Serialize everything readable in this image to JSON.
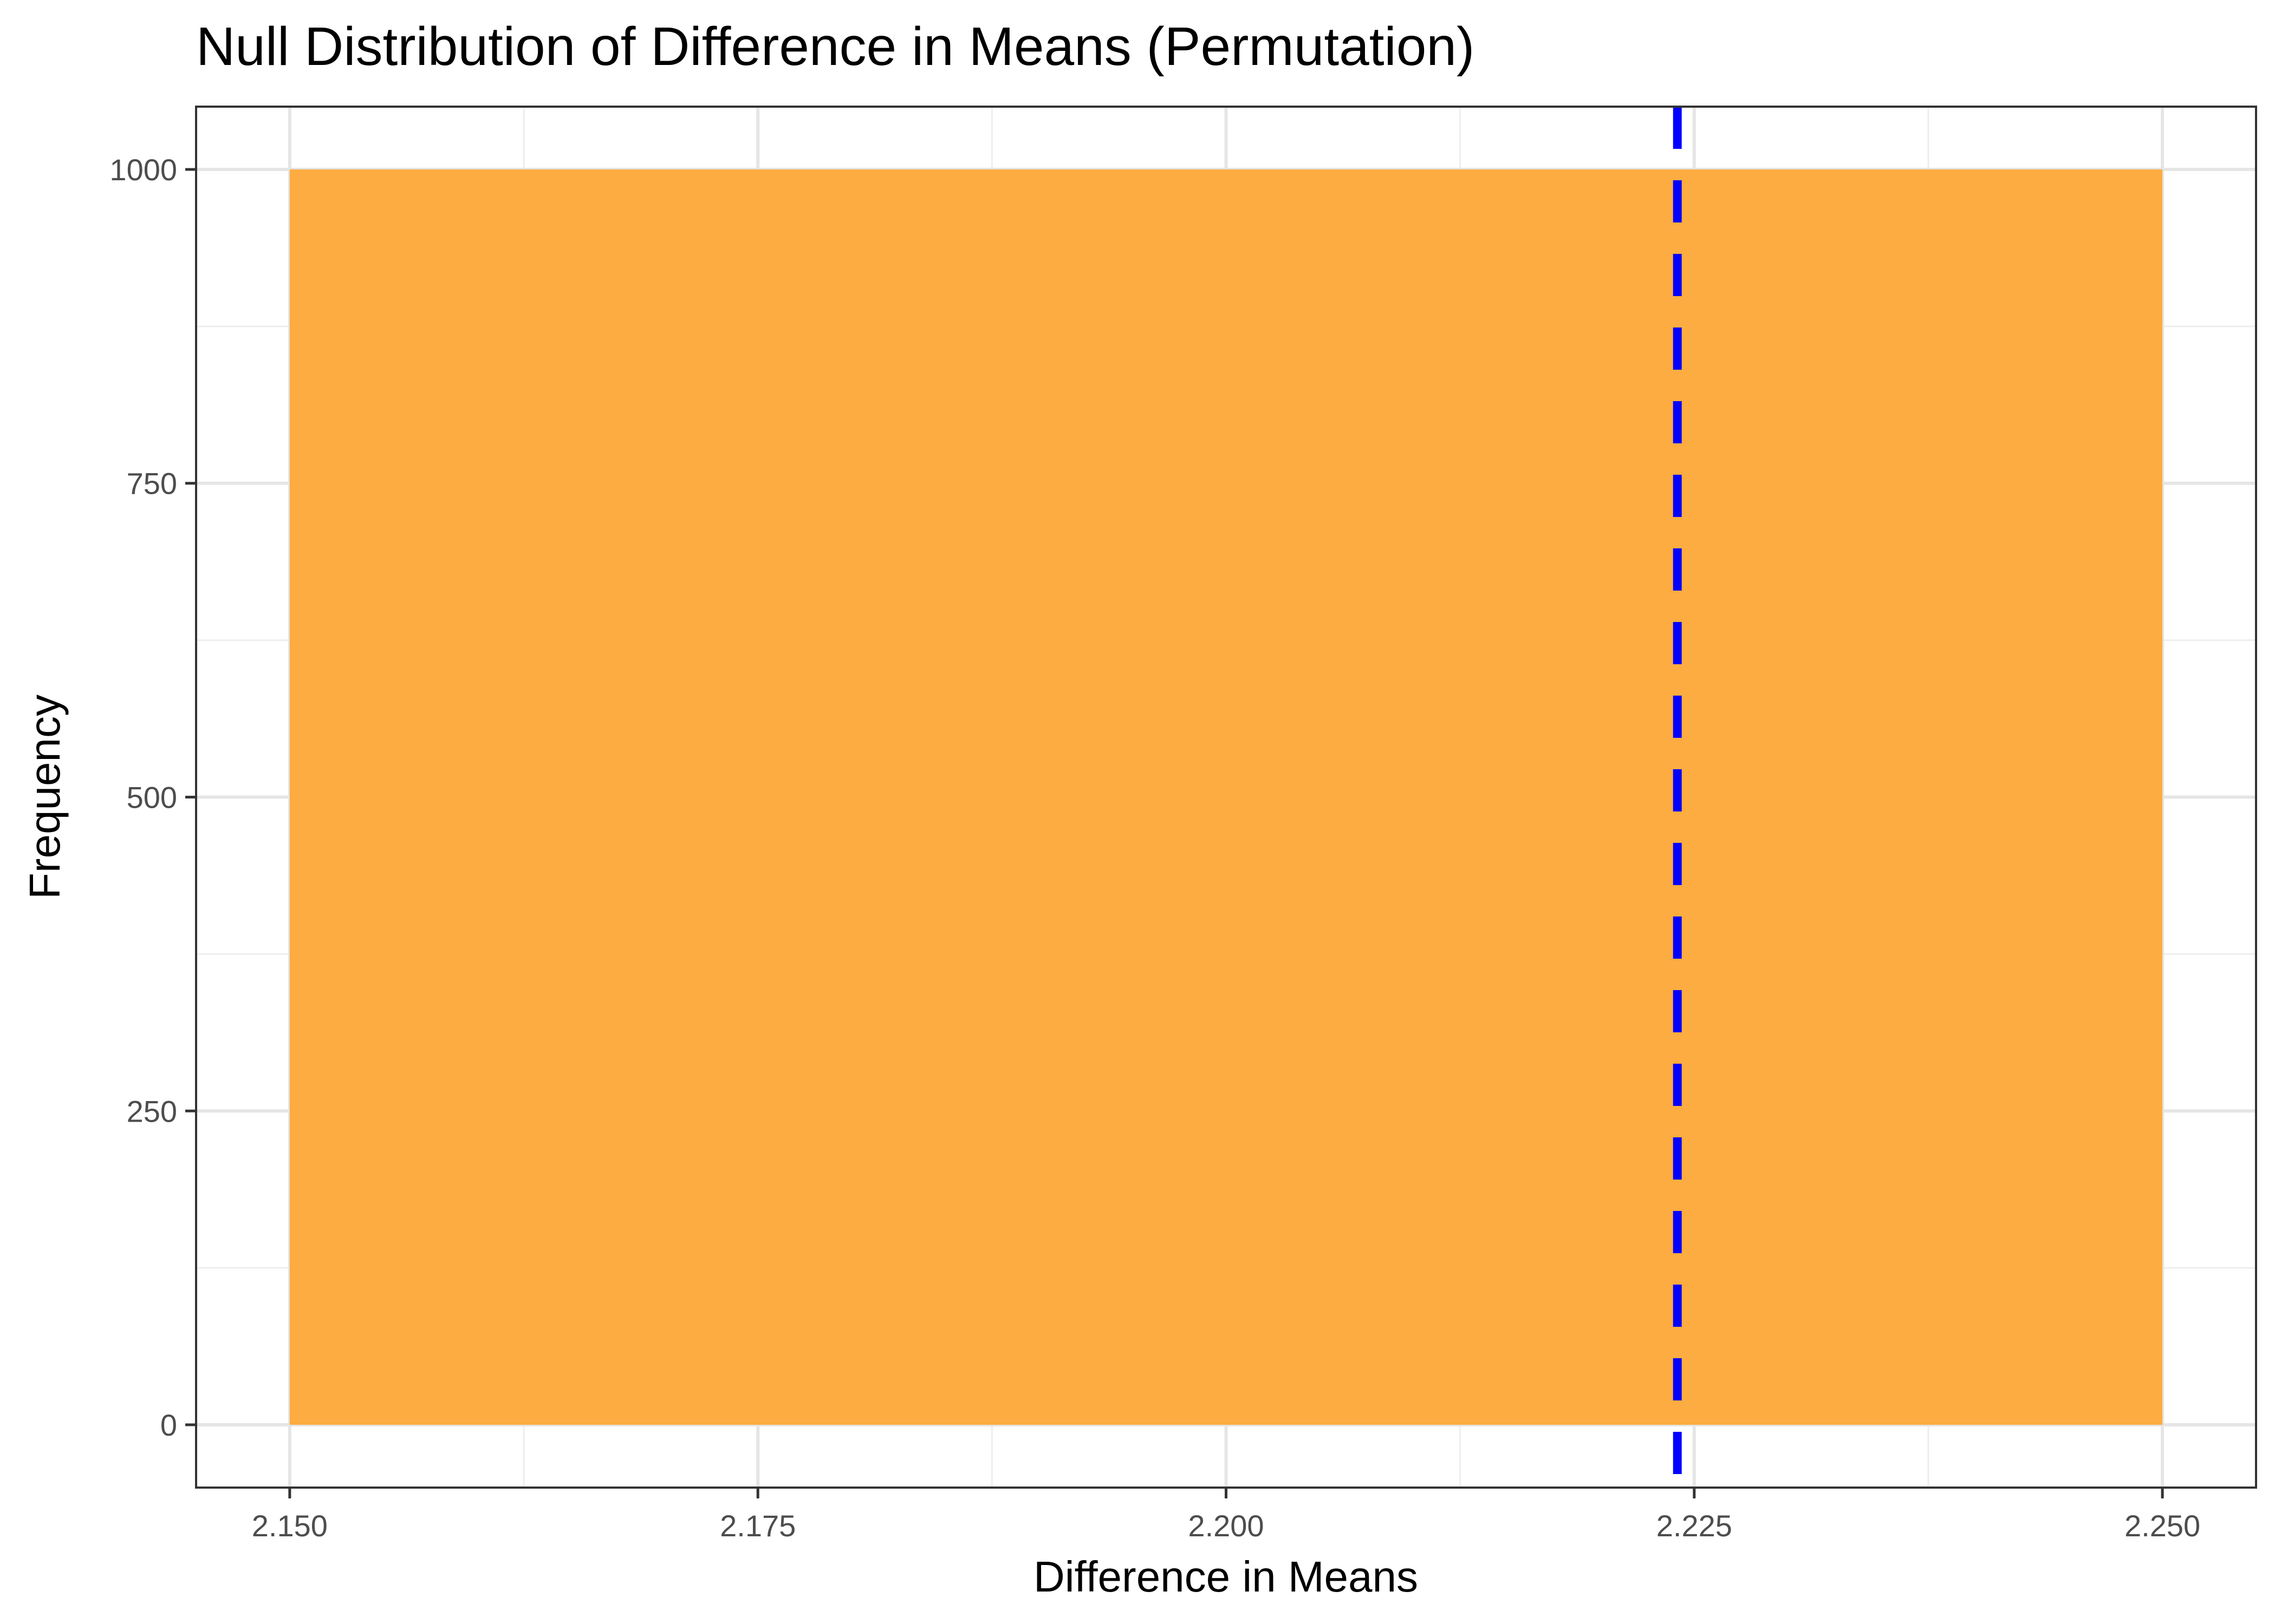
{
  "chart_data": {
    "type": "bar",
    "title": "Null Distribution of Difference in Means (Permutation)",
    "xlabel": "Difference in Means",
    "ylabel": "Frequency",
    "xlim": [
      2.145,
      2.255
    ],
    "ylim": [
      -50,
      1050
    ],
    "x_ticks": [
      2.15,
      2.175,
      2.2,
      2.225,
      2.25
    ],
    "x_tick_labels": [
      "2.150",
      "2.175",
      "2.200",
      "2.225",
      "2.250"
    ],
    "y_ticks": [
      0,
      250,
      500,
      750,
      1000
    ],
    "y_tick_labels": [
      "0",
      "250",
      "500",
      "750",
      "1000"
    ],
    "bins": [
      {
        "x_start": 2.15,
        "x_end": 2.25,
        "count": 1000
      }
    ],
    "reference_line": {
      "x": 2.2241,
      "style": "dashed",
      "color": "#0000ff"
    },
    "bar_color": "#fca93a",
    "grid": true,
    "legend": "none"
  }
}
